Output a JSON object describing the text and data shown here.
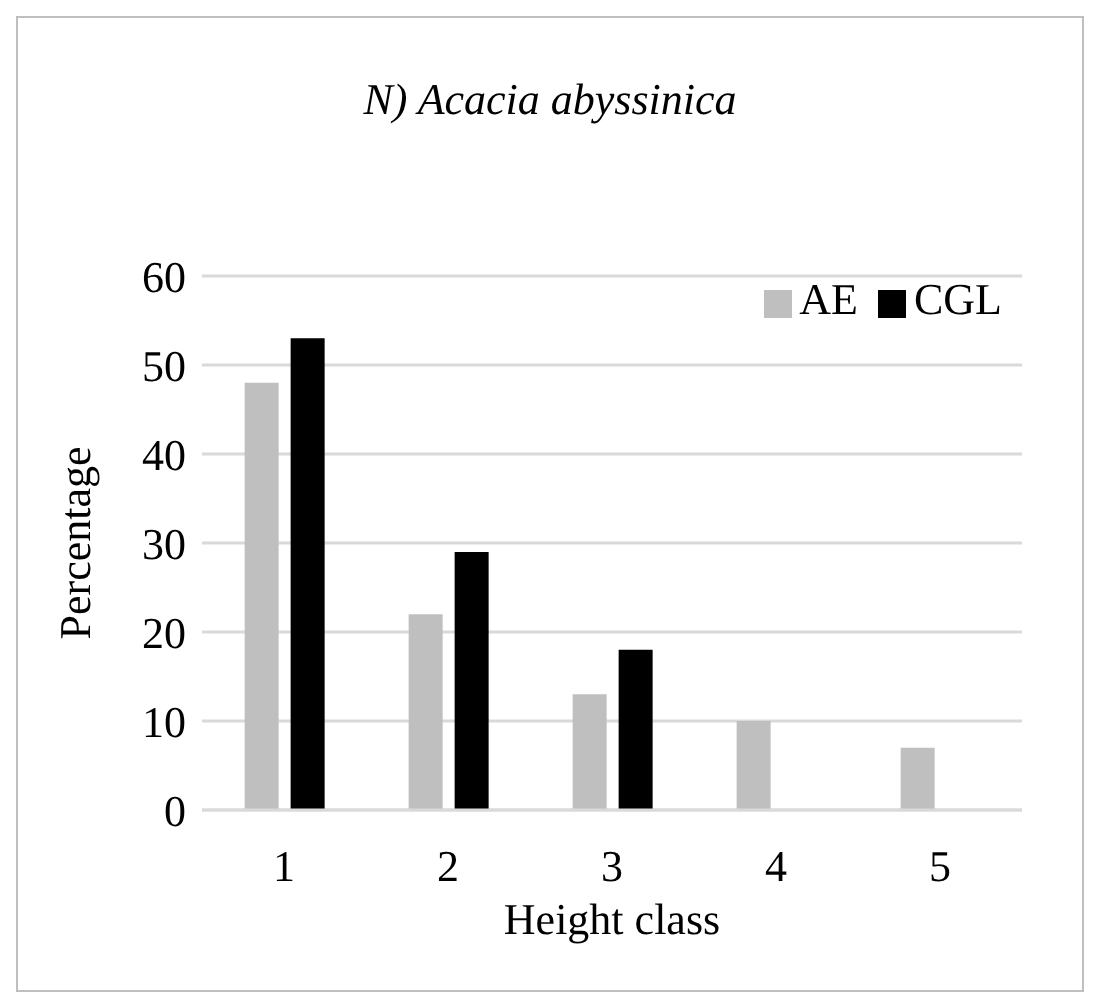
{
  "chart_data": {
    "type": "bar",
    "title": "N) Acacia abyssinica",
    "xlabel": "Height class",
    "ylabel": "Percentage",
    "categories": [
      "1",
      "2",
      "3",
      "4",
      "5"
    ],
    "series": [
      {
        "name": "AE",
        "color": "#bfbfbf",
        "values": [
          48,
          22,
          13,
          10,
          7
        ]
      },
      {
        "name": "CGL",
        "color": "#000000",
        "values": [
          53,
          29,
          18,
          null,
          null
        ]
      }
    ],
    "ylim": [
      0,
      60
    ],
    "yticks": [
      0,
      10,
      20,
      30,
      40,
      50,
      60
    ],
    "grid": "y",
    "legend": "top right"
  }
}
